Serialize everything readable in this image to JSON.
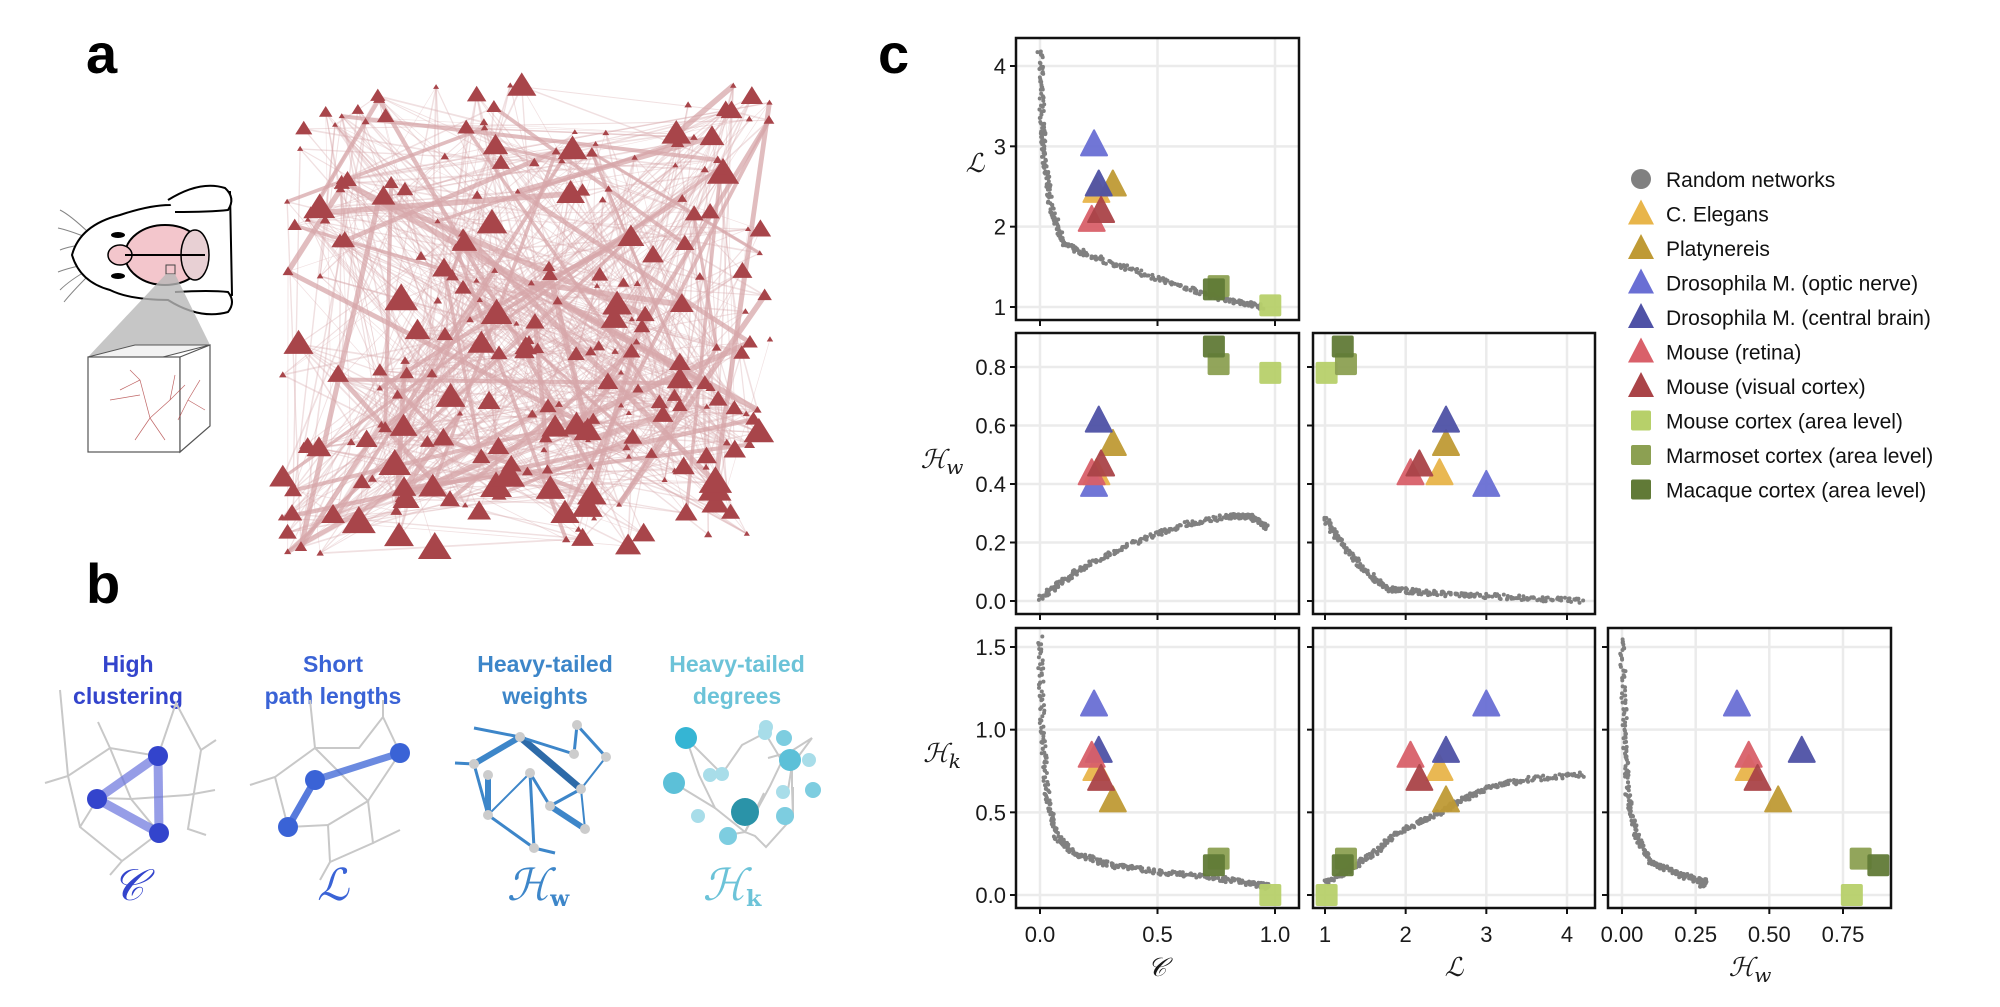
{
  "panel_labels": {
    "a": "a",
    "b": "b",
    "c": "c"
  },
  "panel_b": {
    "items": [
      {
        "title_line1": "High",
        "title_line2": "clustering",
        "symbol": "C",
        "subscript": "",
        "color": "#3344cc"
      },
      {
        "title_line1": "Short",
        "title_line2": "path lengths",
        "symbol": "L",
        "subscript": "",
        "color": "#3a63d6"
      },
      {
        "title_line1": "Heavy-tailed",
        "title_line2": "weights",
        "symbol": "H",
        "subscript": "w",
        "color": "#3d86c9"
      },
      {
        "title_line1": "Heavy-tailed",
        "title_line2": "degrees",
        "symbol": "H",
        "subscript": "k",
        "color": "#6cc3d8"
      }
    ]
  },
  "chart_data": {
    "type": "scatter",
    "title": "",
    "legend_position": "right",
    "legend": [
      {
        "name": "Random networks",
        "shape": "circle",
        "color": "#808080"
      },
      {
        "name": "C. Elegans",
        "shape": "triangle",
        "color": "#e8b54a"
      },
      {
        "name": "Platynereis",
        "shape": "triangle",
        "color": "#bf9a35"
      },
      {
        "name": "Drosophila M. (optic nerve)",
        "shape": "triangle",
        "color": "#6a6fd4"
      },
      {
        "name": "Drosophila M. (central brain)",
        "shape": "triangle",
        "color": "#4f52a6"
      },
      {
        "name": "Mouse (retina)",
        "shape": "triangle",
        "color": "#d9606a"
      },
      {
        "name": "Mouse (visual cortex)",
        "shape": "triangle",
        "color": "#aa4448"
      },
      {
        "name": "Mouse cortex (area level)",
        "shape": "square",
        "color": "#b7d06a"
      },
      {
        "name": "Marmoset cortex (area level)",
        "shape": "square",
        "color": "#8ca052"
      },
      {
        "name": "Macaque cortex (area level)",
        "shape": "square",
        "color": "#617a37"
      }
    ],
    "variables": {
      "C": {
        "label": "C",
        "subscript": "",
        "ticks": [
          "0.0",
          "0.5",
          "1.0"
        ],
        "tick_values": [
          0,
          0.5,
          1.0
        ],
        "range": [
          -0.05,
          1.1
        ]
      },
      "L": {
        "label": "L",
        "subscript": "",
        "ticks": [
          "1",
          "2",
          "3",
          "4"
        ],
        "tick_values": [
          1,
          2,
          3,
          4
        ],
        "range": [
          0.85,
          4.3
        ]
      },
      "Hw": {
        "label": "H",
        "subscript": "w",
        "ticks": [
          "0.00",
          "0.25",
          "0.50",
          "0.75"
        ],
        "tick_values": [
          0,
          0.25,
          0.5,
          0.75
        ],
        "range": [
          -0.05,
          0.9
        ],
        "ticks_y": [
          "0.0",
          "0.2",
          "0.4",
          "0.6",
          "0.8"
        ],
        "tick_values_y": [
          0,
          0.2,
          0.4,
          0.6,
          0.8
        ],
        "range_y": [
          -0.05,
          0.9
        ]
      },
      "Hk": {
        "label": "H",
        "subscript": "k",
        "ticks": [
          "0.0",
          "0.5",
          "1.0",
          "1.5"
        ],
        "tick_values": [
          0,
          0.5,
          1.0,
          1.5
        ],
        "range": [
          -0.07,
          1.62
        ]
      }
    },
    "panels": [
      {
        "x": "C",
        "y": "L",
        "row": 0,
        "col": 0
      },
      {
        "x": "C",
        "y": "Hw",
        "row": 1,
        "col": 0
      },
      {
        "x": "L",
        "y": "Hw",
        "row": 1,
        "col": 1
      },
      {
        "x": "C",
        "y": "Hk",
        "row": 2,
        "col": 0
      },
      {
        "x": "L",
        "y": "Hk",
        "row": 2,
        "col": 1
      },
      {
        "x": "Hw",
        "y": "Hk",
        "row": 2,
        "col": 2
      }
    ],
    "empirical_points": [
      {
        "name": "C. Elegans",
        "C": 0.24,
        "L": 2.42,
        "Hw": 0.43,
        "Hk": 0.75
      },
      {
        "name": "Platynereis",
        "C": 0.31,
        "L": 2.5,
        "Hw": 0.53,
        "Hk": 0.56
      },
      {
        "name": "Drosophila M. (optic nerve)",
        "C": 0.23,
        "L": 3.0,
        "Hw": 0.39,
        "Hk": 1.14
      },
      {
        "name": "Drosophila M. (central brain)",
        "C": 0.25,
        "L": 2.5,
        "Hw": 0.61,
        "Hk": 0.86
      },
      {
        "name": "Mouse (retina)",
        "C": 0.22,
        "L": 2.06,
        "Hw": 0.43,
        "Hk": 0.83
      },
      {
        "name": "Mouse (visual cortex)",
        "C": 0.26,
        "L": 2.17,
        "Hw": 0.46,
        "Hk": 0.69
      },
      {
        "name": "Mouse cortex (area level)",
        "C": 0.98,
        "L": 1.02,
        "Hw": 0.78,
        "Hk": 0.0
      },
      {
        "name": "Marmoset cortex (area level)",
        "C": 0.76,
        "L": 1.26,
        "Hw": 0.81,
        "Hk": 0.22
      },
      {
        "name": "Macaque cortex (area level)",
        "C": 0.74,
        "L": 1.22,
        "Hw": 0.87,
        "Hk": 0.18
      }
    ],
    "random_networks_curve": {
      "description": "gray point cloud of random networks (sampled trend)",
      "C_vs_L": [
        [
          0.0,
          4.2
        ],
        [
          0.01,
          3.3
        ],
        [
          0.02,
          2.8
        ],
        [
          0.05,
          2.2
        ],
        [
          0.1,
          1.8
        ],
        [
          0.2,
          1.65
        ],
        [
          0.4,
          1.45
        ],
        [
          0.6,
          1.25
        ],
        [
          0.8,
          1.08
        ],
        [
          0.95,
          1.0
        ]
      ],
      "C_vs_Hw": [
        [
          0.0,
          0.01
        ],
        [
          0.1,
          0.07
        ],
        [
          0.2,
          0.12
        ],
        [
          0.4,
          0.2
        ],
        [
          0.6,
          0.26
        ],
        [
          0.8,
          0.29
        ],
        [
          0.9,
          0.29
        ],
        [
          0.97,
          0.25
        ]
      ],
      "L_vs_Hw": [
        [
          1.0,
          0.28
        ],
        [
          1.2,
          0.2
        ],
        [
          1.5,
          0.1
        ],
        [
          1.8,
          0.04
        ],
        [
          2.2,
          0.03
        ],
        [
          2.8,
          0.02
        ],
        [
          3.5,
          0.01
        ],
        [
          4.2,
          0.0
        ]
      ],
      "C_vs_Hk": [
        [
          0.0,
          1.55
        ],
        [
          0.01,
          1.0
        ],
        [
          0.03,
          0.6
        ],
        [
          0.07,
          0.35
        ],
        [
          0.15,
          0.25
        ],
        [
          0.3,
          0.18
        ],
        [
          0.5,
          0.14
        ],
        [
          0.7,
          0.11
        ],
        [
          0.9,
          0.07
        ],
        [
          0.97,
          0.05
        ]
      ],
      "L_vs_Hk": [
        [
          1.0,
          0.07
        ],
        [
          1.3,
          0.15
        ],
        [
          1.6,
          0.25
        ],
        [
          1.9,
          0.38
        ],
        [
          2.3,
          0.47
        ],
        [
          2.6,
          0.55
        ],
        [
          3.0,
          0.65
        ],
        [
          3.5,
          0.7
        ],
        [
          4.2,
          0.73
        ]
      ],
      "Hw_vs_Hk": [
        [
          0.0,
          1.55
        ],
        [
          0.01,
          1.0
        ],
        [
          0.02,
          0.6
        ],
        [
          0.05,
          0.35
        ],
        [
          0.1,
          0.2
        ],
        [
          0.2,
          0.12
        ],
        [
          0.28,
          0.08
        ],
        [
          0.27,
          0.06
        ]
      ]
    }
  }
}
